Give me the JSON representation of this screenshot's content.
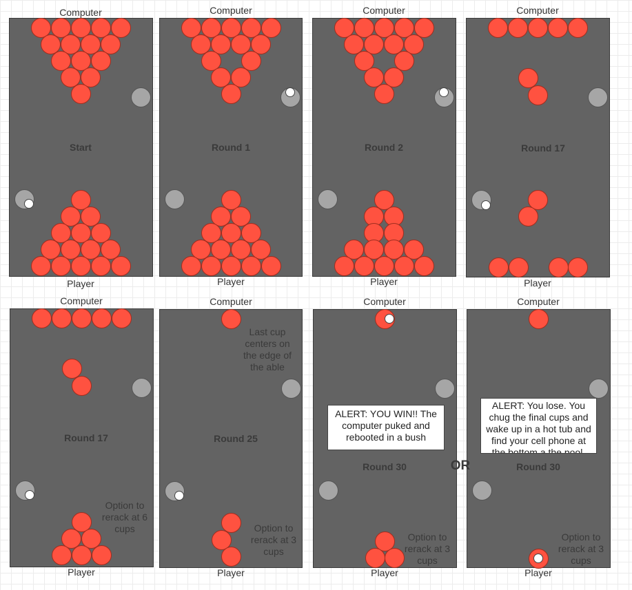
{
  "labels": {
    "computer": "Computer",
    "player": "Player"
  },
  "connector": "OR",
  "colors": {
    "cup": "#ff5240",
    "table": "#636363",
    "shooter": "#a6a6a6",
    "ball": "#ffffff"
  },
  "panels": [
    {
      "id": "start",
      "title": "Start",
      "top_rack": [
        5,
        4,
        3,
        2,
        1
      ],
      "bottom_rack": [
        1,
        2,
        3,
        4,
        5
      ],
      "computer_ball": false,
      "player_ball": true
    },
    {
      "id": "round-1",
      "title": "Round 1",
      "top_rack": [
        5,
        4,
        "2-split",
        2,
        1
      ],
      "bottom_rack": [
        1,
        2,
        3,
        4,
        5
      ],
      "computer_ball": true,
      "player_ball": false
    },
    {
      "id": "round-2",
      "title": "Round 2",
      "top_rack": [
        5,
        4,
        "2-split",
        2,
        1
      ],
      "bottom_rack": [
        1,
        2,
        2,
        4,
        5
      ],
      "computer_ball": true,
      "player_ball": false
    },
    {
      "id": "round-17a",
      "title": "Round 17",
      "top_rack": [
        5,
        "pair"
      ],
      "bottom_rack": [
        "pair",
        "split4"
      ],
      "computer_ball": false,
      "player_ball": true
    },
    {
      "id": "round-17b",
      "title": "Round 17",
      "top_rack": [
        5,
        "pair"
      ],
      "bottom_rack": [
        1,
        2,
        3
      ],
      "computer_ball": false,
      "player_ball": true,
      "note": "Option to\nrerack at 6\ncups"
    },
    {
      "id": "round-25",
      "title": "Round 25",
      "top_rack": [
        1
      ],
      "bottom_rack": [
        "zigzag3"
      ],
      "computer_ball": false,
      "player_ball": true,
      "top_note": "Last cup\ncenters on\nthe edge of\nthe able",
      "note": "Option to\nrerack at 3\ncups"
    },
    {
      "id": "round-30-win",
      "title": "Round 30",
      "top_rack": [
        1
      ],
      "bottom_rack": [
        1,
        2
      ],
      "computer_ball": false,
      "player_ball": false,
      "note": "Option to\nrerack at 3\ncups",
      "alert": "ALERT: YOU WIN!! The computer puked and rebooted in a bush"
    },
    {
      "id": "round-30-lose",
      "title": "Round 30",
      "top_rack": [
        1
      ],
      "bottom_rack": [
        1
      ],
      "computer_ball": false,
      "player_ball": false,
      "note": "Option to\nrerack at 3\ncups",
      "alert": "ALERT: You lose. You chug the final cups and wake up in a hot tub and find your cell phone at the bottom a the pool."
    }
  ]
}
